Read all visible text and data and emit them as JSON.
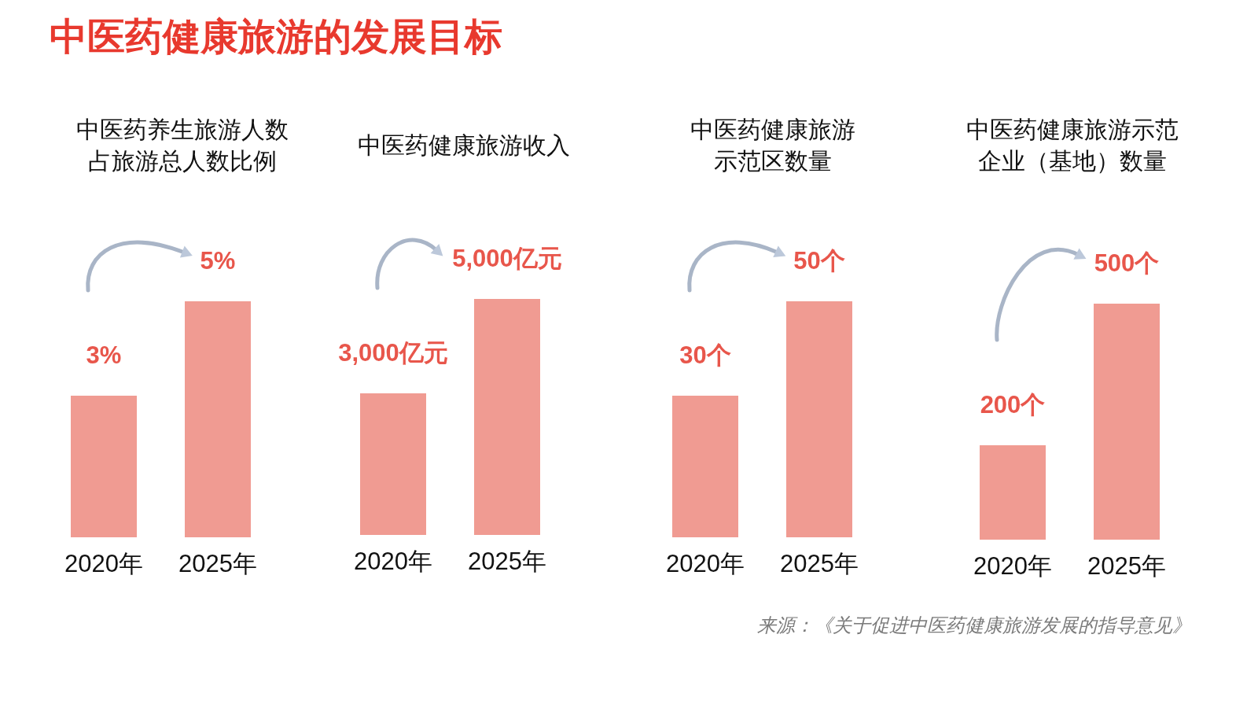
{
  "chart_data": [
    {
      "type": "other",
      "title": "中医药健康旅游的发展目标",
      "annotations": [
        "来源：《关于促进中医药健康旅游发展的指导意见》"
      ]
    },
    {
      "type": "bar",
      "title": "中医药养生旅游人数占旅游总人数比例",
      "categories": [
        "2020年",
        "2025年"
      ],
      "values": [
        3,
        5
      ],
      "value_labels": [
        "3%",
        "5%"
      ],
      "color": "#f09b92"
    },
    {
      "type": "bar",
      "title": "中医药健康旅游收入",
      "categories": [
        "2020年",
        "2025年"
      ],
      "values": [
        3000,
        5000
      ],
      "value_labels": [
        "3,000亿元",
        "5,000亿元"
      ],
      "color": "#f09b92"
    },
    {
      "type": "bar",
      "title": "中医药健康旅游示范区数量",
      "categories": [
        "2020年",
        "2025年"
      ],
      "values": [
        30,
        50
      ],
      "value_labels": [
        "30个",
        "50个"
      ],
      "color": "#f09b92"
    },
    {
      "type": "bar",
      "title": "中医药健康旅游示范企业（基地）数量",
      "categories": [
        "2020年",
        "2025年"
      ],
      "values": [
        200,
        500
      ],
      "value_labels": [
        "200个",
        "500个"
      ],
      "color": "#f09b92"
    }
  ]
}
